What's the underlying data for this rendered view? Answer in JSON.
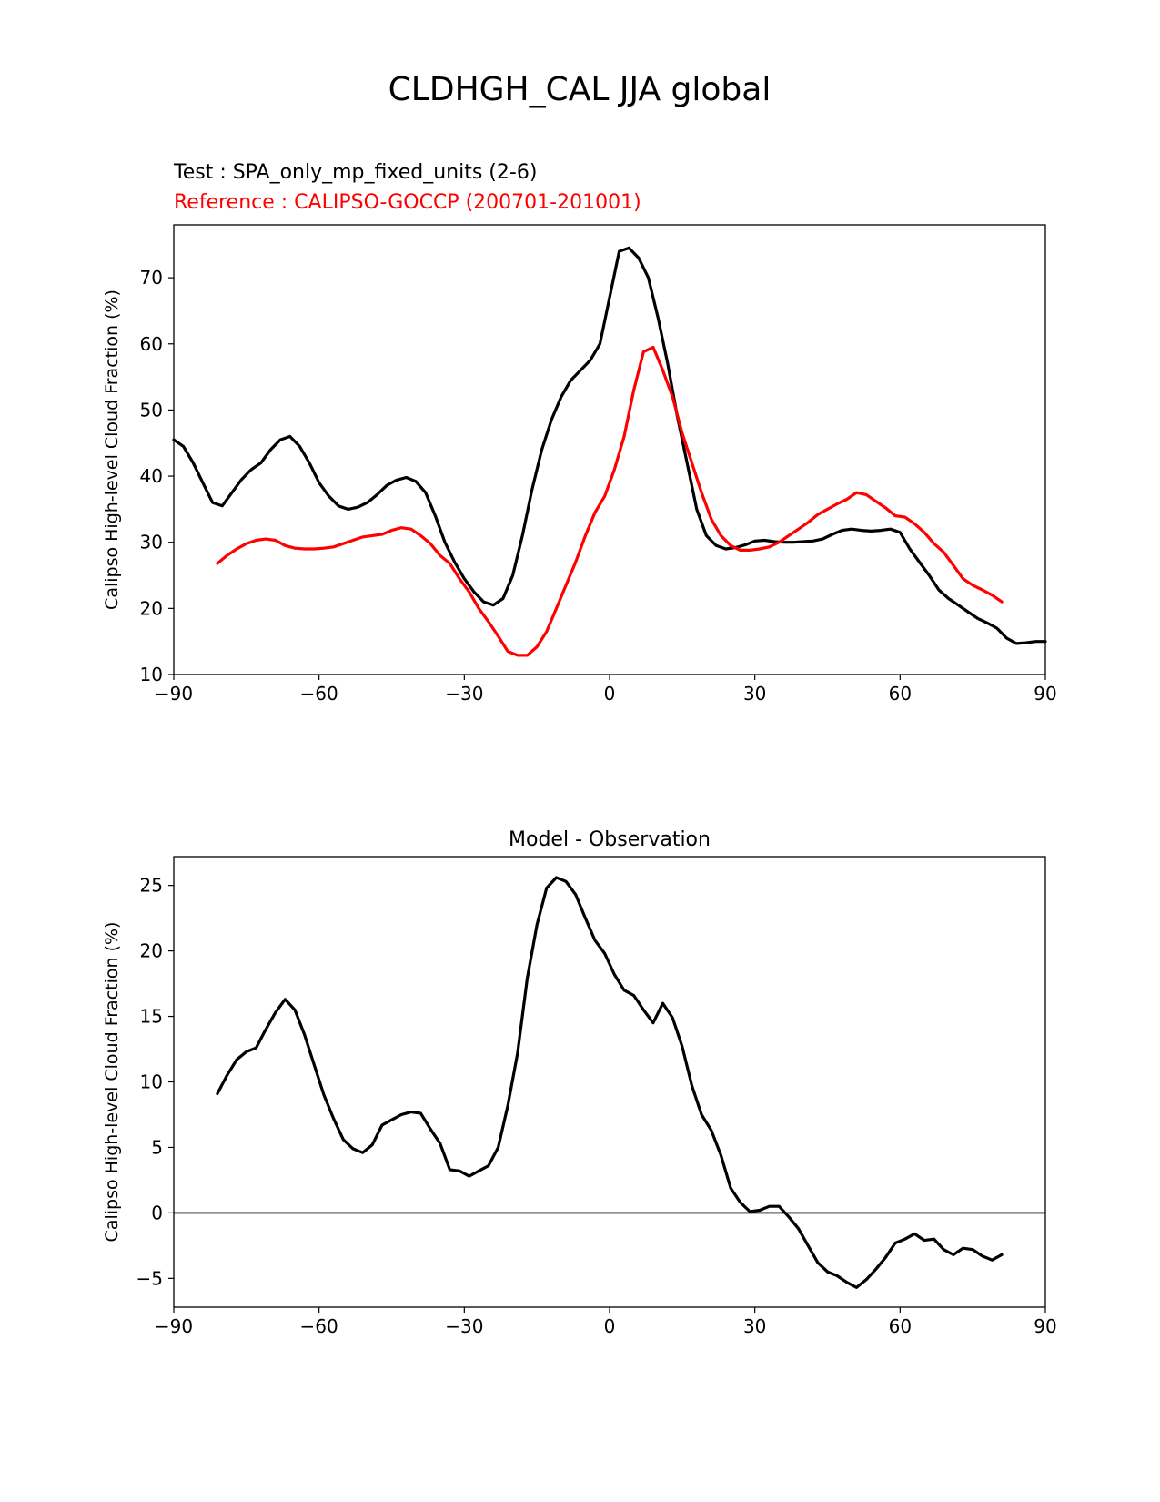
{
  "figure": {
    "title": "CLDHGH_CAL JJA global",
    "test_label": "Test : SPA_only_mp_fixed_units (2-6)",
    "ref_label": "Reference : CALIPSO-GOCCP (200701-201001)"
  },
  "colors": {
    "test": "#000000",
    "reference": "#ff0000",
    "diff": "#000000",
    "zero": "#808080"
  },
  "chart_data": [
    {
      "type": "line",
      "title": "",
      "xlabel": "",
      "ylabel": "Calipso High-level Cloud Fraction (%)",
      "xlim": [
        -90,
        90
      ],
      "ylim": [
        10,
        78
      ],
      "xticks": [
        -90,
        -60,
        -30,
        0,
        30,
        60,
        90
      ],
      "xtick_labels": [
        "−90",
        "−60",
        "−30",
        "0",
        "30",
        "60",
        "90"
      ],
      "yticks": [
        10,
        20,
        30,
        40,
        50,
        60,
        70
      ],
      "ytick_labels": [
        "10",
        "20",
        "30",
        "40",
        "50",
        "60",
        "70"
      ],
      "series": [
        {
          "name": "Test",
          "color": "#000000",
          "x": [
            -90,
            -88,
            -86,
            -84,
            -82,
            -80,
            -78,
            -76,
            -74,
            -72,
            -70,
            -68,
            -66,
            -64,
            -62,
            -60,
            -58,
            -56,
            -54,
            -52,
            -50,
            -48,
            -46,
            -44,
            -42,
            -40,
            -38,
            -36,
            -34,
            -32,
            -30,
            -28,
            -26,
            -24,
            -22,
            -20,
            -18,
            -16,
            -14,
            -12,
            -10,
            -8,
            -6,
            -4,
            -2,
            0,
            2,
            4,
            6,
            8,
            10,
            12,
            14,
            16,
            18,
            20,
            22,
            24,
            26,
            28,
            30,
            32,
            34,
            36,
            38,
            40,
            42,
            44,
            46,
            48,
            50,
            52,
            54,
            56,
            58,
            60,
            62,
            64,
            66,
            68,
            70,
            72,
            74,
            76,
            78,
            80,
            82,
            84,
            86,
            88,
            90
          ],
          "values": [
            45.5,
            44.5,
            42,
            39,
            36,
            35.5,
            37.5,
            39.5,
            41,
            42,
            44,
            45.5,
            46,
            44.5,
            42,
            39,
            37,
            35.5,
            35,
            35.3,
            36,
            37.2,
            38.6,
            39.4,
            39.8,
            39.2,
            37.5,
            34,
            30,
            27,
            24.5,
            22.5,
            21,
            20.5,
            21.5,
            25,
            31,
            38,
            44,
            48.5,
            52,
            54.5,
            56,
            57.5,
            60,
            67,
            74,
            74.5,
            73,
            70,
            64,
            57,
            49,
            42,
            35,
            31,
            29.5,
            29,
            29.2,
            29.6,
            30.2,
            30.3,
            30.1,
            30,
            30,
            30.1,
            30.2,
            30.5,
            31.2,
            31.8,
            32,
            31.8,
            31.7,
            31.8,
            32,
            31.5,
            29,
            27,
            25,
            22.8,
            21.5,
            20.5,
            19.5,
            18.5,
            17.8,
            17,
            15.5,
            14.7,
            14.8,
            15,
            15
          ]
        },
        {
          "name": "Reference",
          "color": "#ff0000",
          "x": [
            -81,
            -79,
            -77,
            -75,
            -73,
            -71,
            -69,
            -67,
            -65,
            -63,
            -61,
            -59,
            -57,
            -55,
            -53,
            -51,
            -49,
            -47,
            -45,
            -43,
            -41,
            -39,
            -37,
            -35,
            -33,
            -31,
            -29,
            -27,
            -25,
            -23,
            -21,
            -19,
            -17,
            -15,
            -13,
            -11,
            -9,
            -7,
            -5,
            -3,
            -1,
            1,
            3,
            5,
            7,
            9,
            11,
            13,
            15,
            17,
            19,
            21,
            23,
            25,
            27,
            29,
            31,
            33,
            35,
            37,
            39,
            41,
            43,
            45,
            47,
            49,
            51,
            53,
            55,
            57,
            59,
            61,
            63,
            65,
            67,
            69,
            71,
            73,
            75,
            77,
            79,
            81
          ],
          "values": [
            26.8,
            28,
            29,
            29.8,
            30.3,
            30.5,
            30.3,
            29.5,
            29.1,
            29,
            29,
            29.1,
            29.3,
            29.8,
            30.3,
            30.8,
            31,
            31.2,
            31.8,
            32.2,
            32,
            31,
            29.8,
            28,
            26.8,
            24.5,
            22.5,
            20,
            18,
            15.8,
            13.5,
            12.9,
            12.9,
            14.2,
            16.5,
            20,
            23.5,
            27,
            31,
            34.5,
            37,
            41,
            46,
            53,
            58.8,
            59.5,
            56,
            52,
            46.5,
            42,
            37.5,
            33.5,
            31,
            29.5,
            28.8,
            28.8,
            29,
            29.3,
            30,
            31,
            32,
            33,
            34.2,
            35,
            35.8,
            36.5,
            37.5,
            37.2,
            36.2,
            35.2,
            34,
            33.8,
            32.8,
            31.5,
            29.8,
            28.5,
            26.5,
            24.5,
            23.5,
            22.8,
            22,
            21
          ]
        }
      ]
    },
    {
      "type": "line",
      "title": "Model - Observation",
      "xlabel": "",
      "ylabel": "Calipso High-level Cloud Fraction (%)",
      "xlim": [
        -90,
        90
      ],
      "ylim": [
        -7.2,
        27.2
      ],
      "xticks": [
        -90,
        -60,
        -30,
        0,
        30,
        60,
        90
      ],
      "xtick_labels": [
        "−90",
        "−60",
        "−30",
        "0",
        "30",
        "60",
        "90"
      ],
      "yticks": [
        -5,
        0,
        5,
        10,
        15,
        20,
        25
      ],
      "ytick_labels": [
        "−5",
        "0",
        "5",
        "10",
        "15",
        "20",
        "25"
      ],
      "zero_line": 0,
      "series": [
        {
          "name": "Model - Observation",
          "color": "#000000",
          "x": [
            -81,
            -79,
            -77,
            -75,
            -73,
            -71,
            -69,
            -67,
            -65,
            -63,
            -61,
            -59,
            -57,
            -55,
            -53,
            -51,
            -49,
            -47,
            -45,
            -43,
            -41,
            -39,
            -37,
            -35,
            -33,
            -31,
            -29,
            -27,
            -25,
            -23,
            -21,
            -19,
            -17,
            -15,
            -13,
            -11,
            -9,
            -7,
            -5,
            -3,
            -1,
            1,
            3,
            5,
            7,
            9,
            11,
            13,
            15,
            17,
            19,
            21,
            23,
            25,
            27,
            29,
            31,
            33,
            35,
            37,
            39,
            41,
            43,
            45,
            47,
            49,
            51,
            53,
            55,
            57,
            59,
            61,
            63,
            65,
            67,
            69,
            71,
            73,
            75,
            77,
            79,
            81
          ],
          "values": [
            9.1,
            10.5,
            11.7,
            12.3,
            12.6,
            14,
            15.3,
            16.3,
            15.5,
            13.6,
            11.3,
            9,
            7.2,
            5.6,
            4.9,
            4.6,
            5.2,
            6.7,
            7.1,
            7.5,
            7.7,
            7.6,
            6.4,
            5.3,
            3.3,
            3.2,
            2.8,
            3.2,
            3.6,
            5,
            8.2,
            12.2,
            17.9,
            22,
            24.8,
            25.6,
            25.3,
            24.3,
            22.5,
            20.8,
            19.8,
            18.2,
            17,
            16.6,
            15.5,
            14.5,
            16,
            14.9,
            12.7,
            9.7,
            7.5,
            6.3,
            4.4,
            1.9,
            0.8,
            0.1,
            0.2,
            0.5,
            0.5,
            -0.3,
            -1.2,
            -2.5,
            -3.8,
            -4.5,
            -4.8,
            -5.3,
            -5.7,
            -5.1,
            -4.3,
            -3.4,
            -2.3,
            -2,
            -1.6,
            -2.1,
            -2,
            -2.8,
            -3.2,
            -2.7,
            -2.8,
            -3.3,
            -3.6,
            -3.2
          ]
        }
      ]
    }
  ]
}
